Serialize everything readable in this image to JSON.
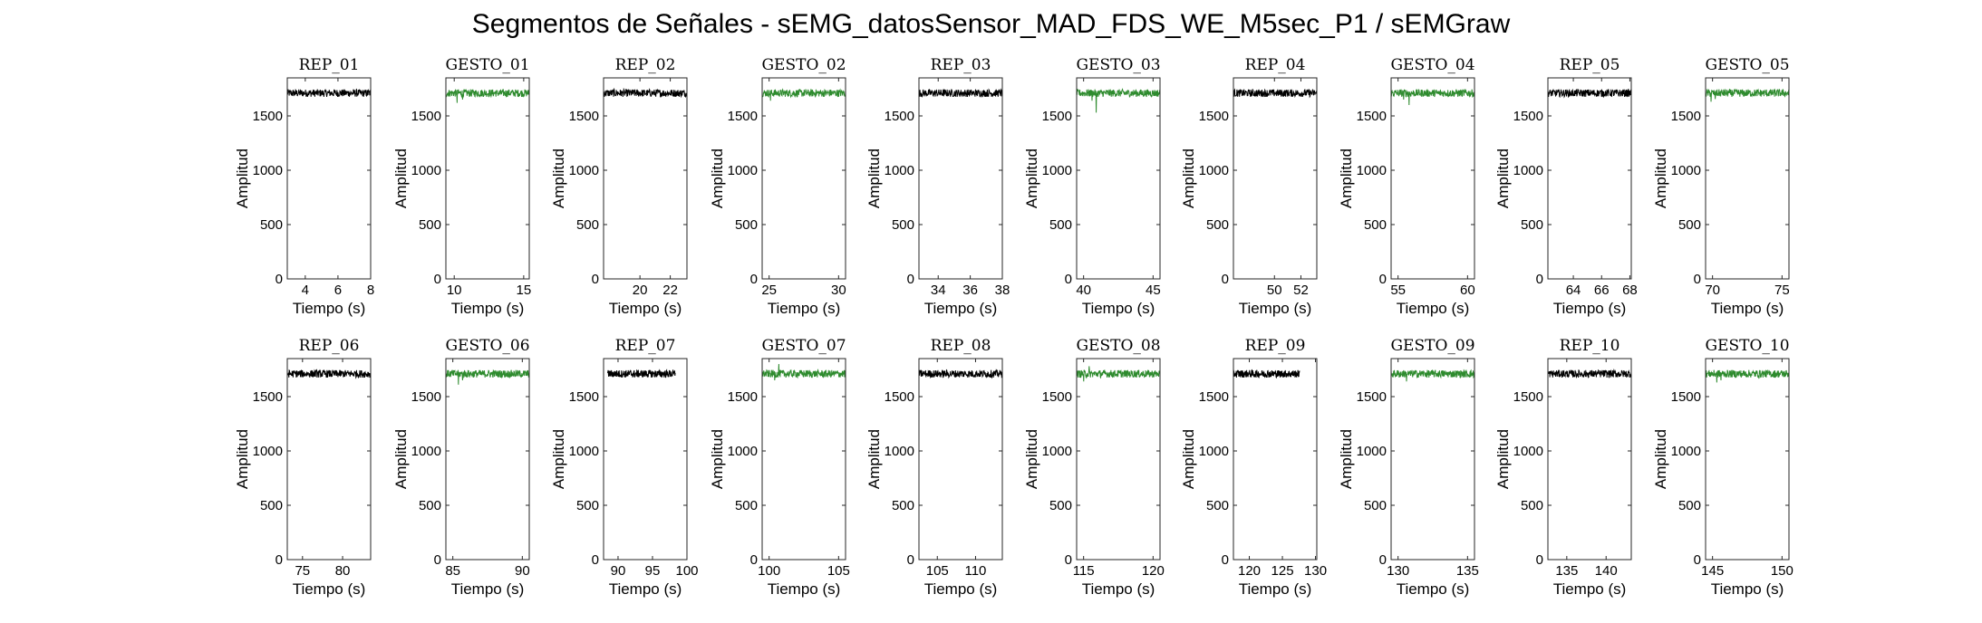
{
  "figure_title": "Segmentos de Señales - sEMG_datosSensor_MAD_FDS_WE_M5sec_P1 / sEMGraw",
  "colors": {
    "rep": "#000000",
    "gesto": "#2e8b2e"
  },
  "chart_data": [
    {
      "type": "line",
      "title": "REP_01",
      "kind": "rep",
      "xlabel": "Tiempo (s)",
      "ylabel": "Amplitud",
      "xlim": [
        2.9,
        8.0
      ],
      "ylim": [
        0,
        1850
      ],
      "xticks": [
        4,
        6,
        8
      ],
      "yticks": [
        0,
        500,
        1000,
        1500
      ],
      "baseline": 1710,
      "line_start": 2.9,
      "line_end": 8.0,
      "spikes": []
    },
    {
      "type": "line",
      "title": "GESTO_01",
      "kind": "gesto",
      "xlabel": "Tiempo (s)",
      "ylabel": "Amplitud",
      "xlim": [
        9.4,
        15.4
      ],
      "ylim": [
        0,
        1850
      ],
      "xticks": [
        10,
        15
      ],
      "yticks": [
        0,
        500,
        1000,
        1500
      ],
      "baseline": 1710,
      "line_start": 9.4,
      "line_end": 15.4,
      "spikes": [
        [
          10.2,
          1620
        ],
        [
          10.6,
          1650
        ]
      ]
    },
    {
      "type": "line",
      "title": "REP_02",
      "kind": "rep",
      "xlabel": "Tiempo (s)",
      "ylabel": "Amplitud",
      "xlim": [
        17.6,
        23.1
      ],
      "ylim": [
        0,
        1850
      ],
      "xticks": [
        20,
        22
      ],
      "yticks": [
        0,
        500,
        1000,
        1500
      ],
      "baseline": 1710,
      "line_start": 17.6,
      "line_end": 23.1,
      "spikes": []
    },
    {
      "type": "line",
      "title": "GESTO_02",
      "kind": "gesto",
      "xlabel": "Tiempo (s)",
      "ylabel": "Amplitud",
      "xlim": [
        24.5,
        30.5
      ],
      "ylim": [
        0,
        1850
      ],
      "xticks": [
        25,
        30
      ],
      "yticks": [
        0,
        500,
        1000,
        1500
      ],
      "baseline": 1710,
      "line_start": 24.5,
      "line_end": 30.5,
      "spikes": [
        [
          25.1,
          1640
        ]
      ]
    },
    {
      "type": "line",
      "title": "REP_03",
      "kind": "rep",
      "xlabel": "Tiempo (s)",
      "ylabel": "Amplitud",
      "xlim": [
        32.8,
        38.0
      ],
      "ylim": [
        0,
        1850
      ],
      "xticks": [
        34,
        36,
        38
      ],
      "yticks": [
        0,
        500,
        1000,
        1500
      ],
      "baseline": 1710,
      "line_start": 32.8,
      "line_end": 38.0,
      "spikes": []
    },
    {
      "type": "line",
      "title": "GESTO_03",
      "kind": "gesto",
      "xlabel": "Tiempo (s)",
      "ylabel": "Amplitud",
      "xlim": [
        39.5,
        45.5
      ],
      "ylim": [
        0,
        1850
      ],
      "xticks": [
        40,
        45
      ],
      "yticks": [
        0,
        500,
        1000,
        1500
      ],
      "baseline": 1710,
      "line_start": 39.5,
      "line_end": 45.5,
      "spikes": [
        [
          40.9,
          1530
        ],
        [
          40.6,
          1640
        ]
      ]
    },
    {
      "type": "line",
      "title": "REP_04",
      "kind": "rep",
      "xlabel": "Tiempo (s)",
      "ylabel": "Amplitud",
      "xlim": [
        46.9,
        53.2
      ],
      "ylim": [
        0,
        1850
      ],
      "xticks": [
        50,
        52
      ],
      "yticks": [
        0,
        500,
        1000,
        1500
      ],
      "baseline": 1710,
      "line_start": 46.9,
      "line_end": 53.2,
      "spikes": []
    },
    {
      "type": "line",
      "title": "GESTO_04",
      "kind": "gesto",
      "xlabel": "Tiempo (s)",
      "ylabel": "Amplitud",
      "xlim": [
        54.5,
        60.5
      ],
      "ylim": [
        0,
        1850
      ],
      "xticks": [
        55,
        60
      ],
      "yticks": [
        0,
        500,
        1000,
        1500
      ],
      "baseline": 1710,
      "line_start": 54.5,
      "line_end": 60.5,
      "spikes": [
        [
          55.8,
          1600
        ],
        [
          55.4,
          1650
        ]
      ]
    },
    {
      "type": "line",
      "title": "REP_05",
      "kind": "rep",
      "xlabel": "Tiempo (s)",
      "ylabel": "Amplitud",
      "xlim": [
        62.2,
        68.1
      ],
      "ylim": [
        0,
        1850
      ],
      "xticks": [
        64,
        66,
        68
      ],
      "yticks": [
        0,
        500,
        1000,
        1500
      ],
      "baseline": 1710,
      "line_start": 62.2,
      "line_end": 68.1,
      "spikes": []
    },
    {
      "type": "line",
      "title": "GESTO_05",
      "kind": "gesto",
      "xlabel": "Tiempo (s)",
      "ylabel": "Amplitud",
      "xlim": [
        69.5,
        75.5
      ],
      "ylim": [
        0,
        1850
      ],
      "xticks": [
        70,
        75
      ],
      "yticks": [
        0,
        500,
        1000,
        1500
      ],
      "baseline": 1710,
      "line_start": 69.5,
      "line_end": 75.5,
      "spikes": [
        [
          69.9,
          1630
        ],
        [
          70.2,
          1655
        ]
      ]
    },
    {
      "type": "line",
      "title": "REP_06",
      "kind": "rep",
      "xlabel": "Tiempo (s)",
      "ylabel": "Amplitud",
      "xlim": [
        73.1,
        83.5
      ],
      "ylim": [
        0,
        1850
      ],
      "xticks": [
        75,
        80
      ],
      "yticks": [
        0,
        500,
        1000,
        1500
      ],
      "baseline": 1710,
      "line_start": 73.1,
      "line_end": 83.5,
      "spikes": []
    },
    {
      "type": "line",
      "title": "GESTO_06",
      "kind": "gesto",
      "xlabel": "Tiempo (s)",
      "ylabel": "Amplitud",
      "xlim": [
        84.5,
        90.5
      ],
      "ylim": [
        0,
        1850
      ],
      "xticks": [
        85,
        90
      ],
      "yticks": [
        0,
        500,
        1000,
        1500
      ],
      "baseline": 1710,
      "line_start": 84.5,
      "line_end": 90.5,
      "spikes": [
        [
          85.4,
          1610
        ],
        [
          85.7,
          1650
        ]
      ]
    },
    {
      "type": "line",
      "title": "REP_07",
      "kind": "rep",
      "xlabel": "Tiempo (s)",
      "ylabel": "Amplitud",
      "xlim": [
        87.9,
        100.0
      ],
      "ylim": [
        0,
        1850
      ],
      "xticks": [
        90,
        95,
        100
      ],
      "yticks": [
        0,
        500,
        1000,
        1500
      ],
      "baseline": 1710,
      "line_start": 88.5,
      "line_end": 98.3,
      "spikes": []
    },
    {
      "type": "line",
      "title": "GESTO_07",
      "kind": "gesto",
      "xlabel": "Tiempo (s)",
      "ylabel": "Amplitud",
      "xlim": [
        99.5,
        105.5
      ],
      "ylim": [
        0,
        1850
      ],
      "xticks": [
        100,
        105
      ],
      "yticks": [
        0,
        500,
        1000,
        1500
      ],
      "baseline": 1710,
      "line_start": 99.5,
      "line_end": 105.5,
      "spikes": [
        [
          100.4,
          1650
        ],
        [
          100.7,
          1800
        ]
      ]
    },
    {
      "type": "line",
      "title": "REP_08",
      "kind": "rep",
      "xlabel": "Tiempo (s)",
      "ylabel": "Amplitud",
      "xlim": [
        102.6,
        113.5
      ],
      "ylim": [
        0,
        1850
      ],
      "xticks": [
        105,
        110
      ],
      "yticks": [
        0,
        500,
        1000,
        1500
      ],
      "baseline": 1710,
      "line_start": 102.6,
      "line_end": 113.5,
      "spikes": []
    },
    {
      "type": "line",
      "title": "GESTO_08",
      "kind": "gesto",
      "xlabel": "Tiempo (s)",
      "ylabel": "Amplitud",
      "xlim": [
        114.5,
        120.5
      ],
      "ylim": [
        0,
        1850
      ],
      "xticks": [
        115,
        120
      ],
      "yticks": [
        0,
        500,
        1000,
        1500
      ],
      "baseline": 1710,
      "line_start": 114.5,
      "line_end": 120.5,
      "spikes": [
        [
          115.0,
          1640
        ],
        [
          115.4,
          1780
        ]
      ]
    },
    {
      "type": "line",
      "title": "REP_09",
      "kind": "rep",
      "xlabel": "Tiempo (s)",
      "ylabel": "Amplitud",
      "xlim": [
        117.6,
        130.2
      ],
      "ylim": [
        0,
        1850
      ],
      "xticks": [
        120,
        125,
        130
      ],
      "yticks": [
        0,
        500,
        1000,
        1500
      ],
      "baseline": 1710,
      "line_start": 117.6,
      "line_end": 127.6,
      "spikes": []
    },
    {
      "type": "line",
      "title": "GESTO_09",
      "kind": "gesto",
      "xlabel": "Tiempo (s)",
      "ylabel": "Amplitud",
      "xlim": [
        129.5,
        135.5
      ],
      "ylim": [
        0,
        1850
      ],
      "xticks": [
        130,
        135
      ],
      "yticks": [
        0,
        500,
        1000,
        1500
      ],
      "baseline": 1710,
      "line_start": 129.5,
      "line_end": 135.5,
      "spikes": [
        [
          130.6,
          1640
        ]
      ]
    },
    {
      "type": "line",
      "title": "REP_10",
      "kind": "rep",
      "xlabel": "Tiempo (s)",
      "ylabel": "Amplitud",
      "xlim": [
        132.6,
        143.2
      ],
      "ylim": [
        0,
        1850
      ],
      "xticks": [
        135,
        140
      ],
      "yticks": [
        0,
        500,
        1000,
        1500
      ],
      "baseline": 1710,
      "line_start": 132.6,
      "line_end": 143.2,
      "spikes": []
    },
    {
      "type": "line",
      "title": "GESTO_10",
      "kind": "gesto",
      "xlabel": "Tiempo (s)",
      "ylabel": "Amplitud",
      "xlim": [
        144.5,
        150.5
      ],
      "ylim": [
        0,
        1850
      ],
      "xticks": [
        145,
        150
      ],
      "yticks": [
        0,
        500,
        1000,
        1500
      ],
      "baseline": 1710,
      "line_start": 144.5,
      "line_end": 150.5,
      "spikes": [
        [
          145.3,
          1630
        ],
        [
          145.6,
          1650
        ]
      ]
    }
  ]
}
